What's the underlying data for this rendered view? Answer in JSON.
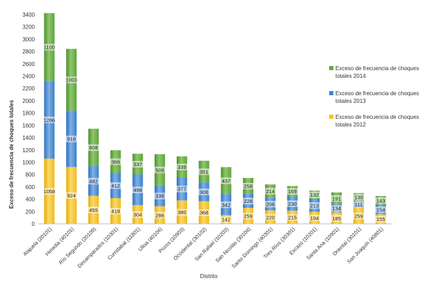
{
  "chart_data": {
    "type": "bar",
    "stacked": true,
    "xlabel": "Distrito",
    "ylabel": "Exceso de frecuencia de choques totales",
    "ylim": [
      0,
      3400
    ],
    "yticks": [
      0,
      200,
      400,
      600,
      800,
      1000,
      1200,
      1400,
      1600,
      1800,
      2000,
      2200,
      2400,
      2600,
      2800,
      3000,
      3200,
      3400
    ],
    "grid": false,
    "legend_position": "right",
    "categories": [
      "Alajuela (20101)",
      "Heredia (40101)",
      "Río Segundo (20109)",
      "Desamparados (10301)",
      "Curridabat (11801)",
      "Ulloa (40104)",
      "Pozos (10903)",
      "Occidental (30102)",
      "San Rafael (10203)",
      "San Nicolás (30104)",
      "Santo Domingo (40301)",
      "Tres Ríos (30301)",
      "Escazú (10201)",
      "Santa Ana (10901)",
      "Oriental (30101)",
      "San Joaquín (40801)"
    ],
    "series": [
      {
        "name": "Exceso de frecuencia de choques totales 2012",
        "color": "#f5c31c",
        "values": [
          1058,
          924,
          455,
          418,
          304,
          286,
          380,
          368,
          142,
          259,
          220,
          215,
          194,
          185,
          259,
          155
        ]
      },
      {
        "name": "Exceso de frecuencia de choques totales 2013",
        "color": "#3f85d1",
        "values": [
          1266,
          916,
          482,
          412,
          498,
          338,
          377,
          306,
          342,
          228,
          206,
          230,
          213,
          134,
          111,
          154
        ]
      },
      {
        "name": "Exceso de frecuencia de choques totales 2014",
        "color": "#62a93f",
        "values": [
          1100,
          1003,
          608,
          366,
          337,
          508,
          339,
          351,
          437,
          258,
          214,
          169,
          132,
          191,
          130,
          143
        ]
      }
    ]
  }
}
